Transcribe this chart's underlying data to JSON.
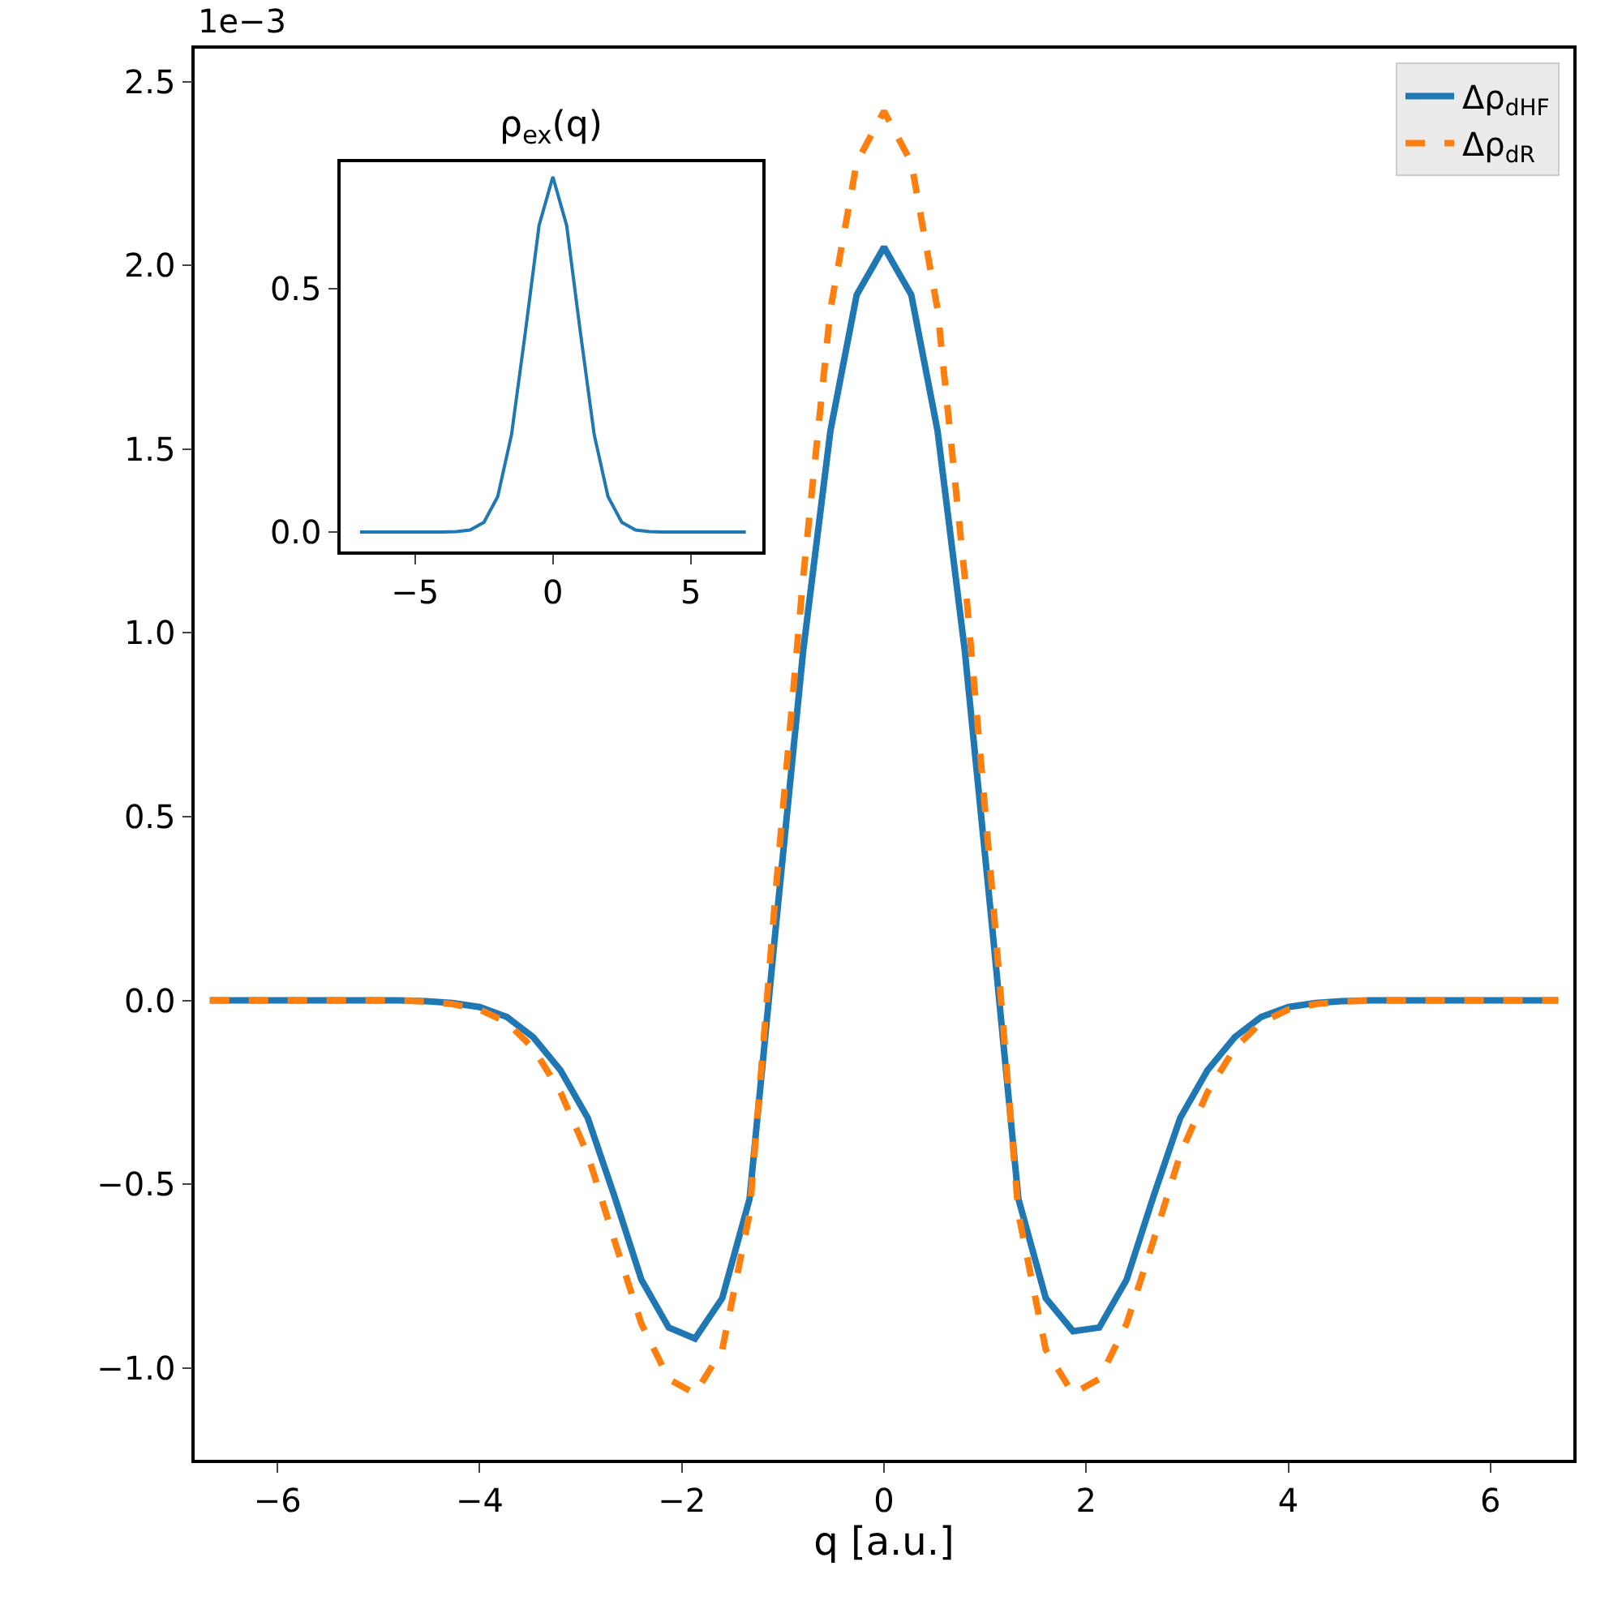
{
  "chart_data": [
    {
      "type": "line",
      "xlabel": "q [a.u.]",
      "annotations": [
        "1e−3"
      ],
      "legend": "top right",
      "marker": "none",
      "x": [
        -6.67,
        -6.4,
        -6.13,
        -5.87,
        -5.6,
        -5.33,
        -5.07,
        -4.8,
        -4.53,
        -4.27,
        -4.0,
        -3.73,
        -3.47,
        -3.2,
        -2.93,
        -2.67,
        -2.4,
        -2.13,
        -1.87,
        -1.6,
        -1.33,
        -1.07,
        -0.8,
        -0.53,
        -0.27,
        0,
        0.27,
        0.53,
        0.8,
        1.07,
        1.33,
        1.6,
        1.87,
        2.13,
        2.4,
        2.67,
        2.93,
        3.2,
        3.47,
        3.73,
        4.0,
        4.27,
        4.53,
        4.8,
        5.07,
        5.33,
        5.6,
        5.87,
        6.13,
        6.4,
        6.67
      ],
      "series": [
        {
          "name": "Δρ$_{dHF}$",
          "color": "#1f77b4",
          "line_style": "solid",
          "values": [
            0,
            0,
            0,
            0,
            0,
            0,
            0,
            0,
            -0.002,
            -0.007,
            -0.018,
            -0.045,
            -0.1,
            -0.19,
            -0.32,
            -0.53,
            -0.76,
            -0.89,
            -0.92,
            -0.81,
            -0.54,
            0.2,
            0.95,
            1.55,
            1.92,
            2.05,
            1.92,
            1.55,
            0.95,
            0.2,
            -0.54,
            -0.81,
            -0.9,
            -0.89,
            -0.76,
            -0.53,
            -0.32,
            -0.19,
            -0.1,
            -0.045,
            -0.018,
            -0.007,
            -0.002,
            0,
            0,
            0,
            0,
            0,
            0,
            0,
            0
          ]
        },
        {
          "name": "Δρ$_{dR}$",
          "color": "#ff7f0e",
          "line_style": "dashed",
          "values": [
            0,
            0,
            0,
            0,
            0,
            0,
            0,
            0,
            -0.003,
            -0.01,
            -0.025,
            -0.06,
            -0.13,
            -0.25,
            -0.42,
            -0.65,
            -0.88,
            -1.03,
            -1.07,
            -0.95,
            -0.58,
            0.3,
            1.15,
            1.88,
            2.28,
            2.42,
            2.28,
            1.88,
            1.15,
            0.3,
            -0.58,
            -0.95,
            -1.07,
            -1.03,
            -0.88,
            -0.65,
            -0.42,
            -0.25,
            -0.13,
            -0.06,
            -0.025,
            -0.01,
            -0.003,
            0,
            0,
            0,
            0,
            0,
            0,
            0,
            0
          ]
        }
      ],
      "xlim": [
        -6.82,
        6.82
      ],
      "ylim": [
        -1.25,
        2.59
      ],
      "xticks": [
        {
          "value": -6,
          "label": "−6"
        },
        {
          "value": -4,
          "label": "−4"
        },
        {
          "value": -2,
          "label": "−2"
        },
        0,
        2,
        4,
        6
      ],
      "yticks": [
        {
          "value": -1.0,
          "label": "−1.0"
        },
        {
          "value": -0.5,
          "label": "−0.5"
        },
        {
          "value": 0,
          "label": "0.0"
        },
        0.5,
        {
          "value": 1.0,
          "label": "1.0"
        },
        1.5,
        {
          "value": 2.0,
          "label": "2.0"
        },
        2.5
      ]
    },
    {
      "type": "line",
      "title": "ρ$_{ex}$(q)",
      "marker": "none",
      "legend": false,
      "x": [
        -7,
        -6,
        -5,
        -4,
        -3.5,
        -3,
        -2.5,
        -2,
        -1.5,
        -1,
        -0.5,
        0,
        0.5,
        1,
        1.5,
        2,
        2.5,
        3,
        3.5,
        4,
        5,
        6,
        7
      ],
      "series": [
        {
          "color": "#1f77b4",
          "line_style": "solid",
          "values": [
            0,
            0,
            0,
            0,
            0.001,
            0.004,
            0.02,
            0.073,
            0.2,
            0.41,
            0.63,
            0.73,
            0.63,
            0.41,
            0.2,
            0.073,
            0.02,
            0.004,
            0.001,
            0,
            0,
            0,
            0
          ]
        }
      ],
      "xlim": [
        -7.7,
        7.6
      ],
      "ylim": [
        -0.04,
        0.76
      ],
      "xticks": [
        {
          "value": -5,
          "label": "−5"
        },
        0,
        5
      ],
      "yticks": [
        {
          "value": 0,
          "label": "0.0"
        },
        0.5
      ]
    }
  ]
}
